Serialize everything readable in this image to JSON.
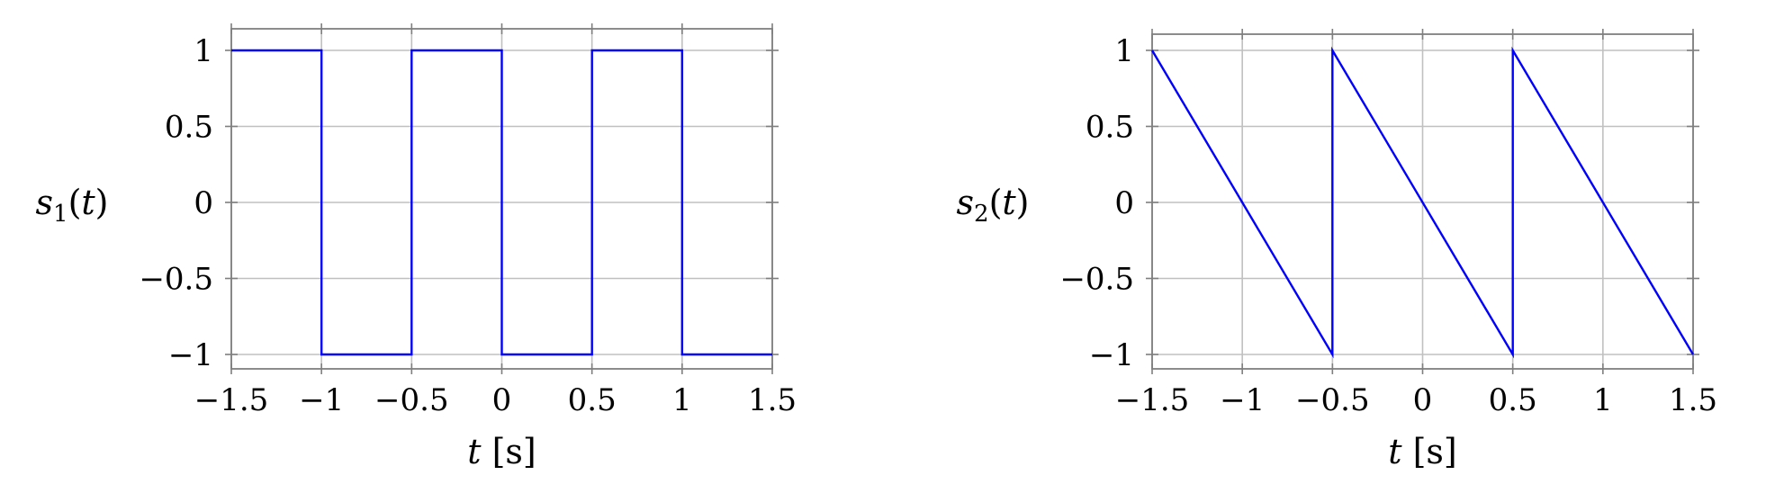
{
  "chart_data": [
    {
      "type": "line",
      "ylabel": {
        "symbol": "s",
        "sub": "1",
        "arg": "t"
      },
      "xlabel": {
        "symbol": "t",
        "unit": "[s]"
      },
      "xlim": [
        -1.5,
        1.5
      ],
      "ylim": [
        -1,
        1
      ],
      "xticks": [
        -1.5,
        -1,
        -0.5,
        0,
        0.5,
        1,
        1.5
      ],
      "xtick_labels": [
        "−1.5",
        "−1",
        "−0.5",
        "0",
        "0.5",
        "1",
        "1.5"
      ],
      "yticks": [
        1,
        0.5,
        0,
        -0.5,
        -1
      ],
      "ytick_labels": [
        "1",
        "0.5",
        "0",
        "−0.5",
        "−1"
      ],
      "grid": true,
      "color": "#0000ff",
      "series": [
        {
          "x": [
            -1.5,
            -1,
            -1,
            -0.5,
            -0.5,
            0,
            0,
            0.5,
            0.5,
            1,
            1,
            1.5
          ],
          "y": [
            1,
            1,
            -1,
            -1,
            1,
            1,
            -1,
            -1,
            1,
            1,
            -1,
            -1
          ]
        }
      ]
    },
    {
      "type": "line",
      "ylabel": {
        "symbol": "s",
        "sub": "2",
        "arg": "t"
      },
      "xlabel": {
        "symbol": "t",
        "unit": "[s]"
      },
      "xlim": [
        -1.5,
        1.5
      ],
      "ylim": [
        -1,
        1
      ],
      "xticks": [
        -1.5,
        -1,
        -0.5,
        0,
        0.5,
        1,
        1.5
      ],
      "xtick_labels": [
        "−1.5",
        "−1",
        "−0.5",
        "0",
        "0.5",
        "1",
        "1.5"
      ],
      "yticks": [
        1,
        0.5,
        0,
        -0.5,
        -1
      ],
      "ytick_labels": [
        "1",
        "0.5",
        "0",
        "−0.5",
        "−1"
      ],
      "grid": true,
      "color": "#0000ff",
      "series": [
        {
          "x": [
            -1.5,
            -0.5,
            -0.5,
            0.5,
            0.5,
            1.5
          ],
          "y": [
            1,
            -1,
            1,
            -1,
            1,
            -1
          ]
        }
      ]
    }
  ]
}
